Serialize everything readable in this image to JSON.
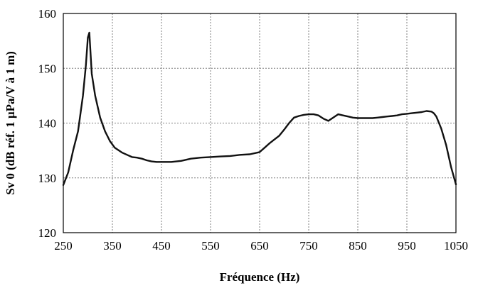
{
  "chart_data": {
    "type": "line",
    "title": "",
    "xlabel": "Fréquence (Hz)",
    "ylabel": "Sv 0 (dB réf. 1 µPa/V à 1 m)",
    "xlim": [
      250,
      1050
    ],
    "ylim": [
      120,
      160
    ],
    "xticks": [
      250,
      350,
      450,
      550,
      650,
      750,
      850,
      950,
      1050
    ],
    "yticks": [
      120,
      130,
      140,
      150,
      160
    ],
    "xtick_labels": [
      "250",
      "350",
      "450",
      "550",
      "650",
      "750",
      "850",
      "950",
      "1050"
    ],
    "ytick_labels": [
      "120",
      "130",
      "140",
      "150",
      "160"
    ],
    "grid": true,
    "legend": "none",
    "series": [
      {
        "color": "#111111",
        "x": [
          250,
          260,
          270,
          280,
          290,
          296,
          300,
          303,
          308,
          315,
          325,
          335,
          345,
          355,
          370,
          380,
          390,
          400,
          410,
          420,
          430,
          440,
          450,
          470,
          490,
          510,
          530,
          550,
          570,
          590,
          610,
          630,
          650,
          660,
          670,
          680,
          690,
          700,
          710,
          720,
          730,
          740,
          750,
          760,
          770,
          780,
          790,
          800,
          810,
          820,
          830,
          840,
          850,
          860,
          870,
          880,
          890,
          900,
          910,
          920,
          930,
          940,
          950,
          960,
          970,
          980,
          990,
          1000,
          1005,
          1010,
          1020,
          1030,
          1040,
          1050
        ],
        "y": [
          128.7,
          131,
          135,
          138.5,
          145,
          150.5,
          155.6,
          156.5,
          149,
          145,
          141,
          138.5,
          136.7,
          135.5,
          134.6,
          134.2,
          133.8,
          133.7,
          133.5,
          133.2,
          133,
          132.9,
          132.9,
          132.9,
          133.1,
          133.5,
          133.7,
          133.8,
          133.9,
          134,
          134.2,
          134.3,
          134.7,
          135.5,
          136.3,
          137,
          137.7,
          138.8,
          140,
          141,
          141.3,
          141.5,
          141.6,
          141.6,
          141.4,
          140.8,
          140.4,
          141,
          141.6,
          141.4,
          141.2,
          141,
          140.9,
          140.9,
          140.9,
          140.9,
          141,
          141.1,
          141.2,
          141.3,
          141.4,
          141.6,
          141.7,
          141.8,
          141.9,
          142,
          142.2,
          142.1,
          141.8,
          141.2,
          139,
          136,
          132,
          128.8
        ]
      }
    ]
  }
}
